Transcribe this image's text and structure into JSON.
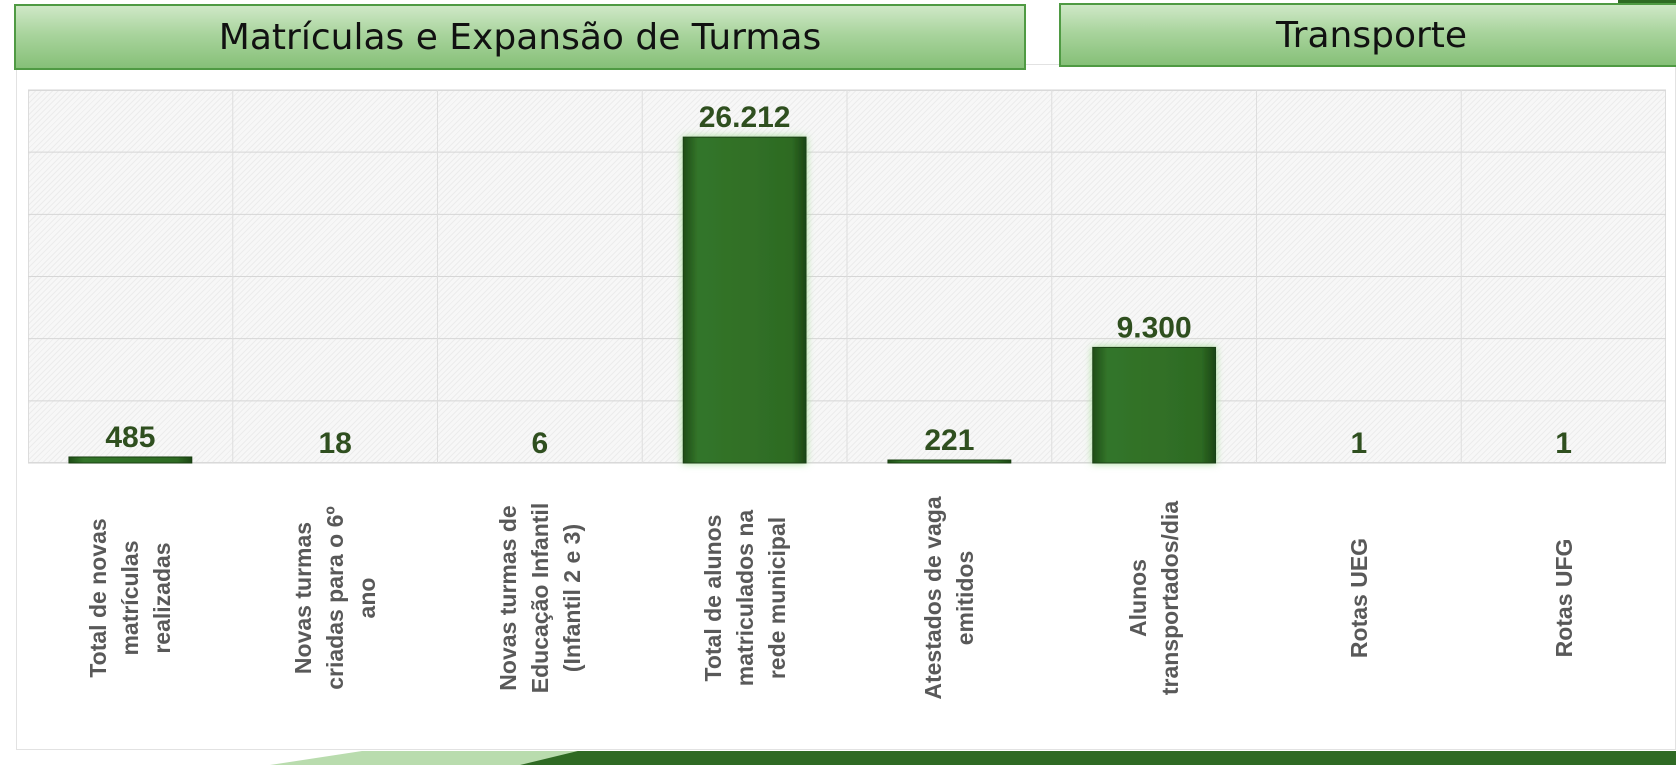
{
  "headers": {
    "left": "Matrículas e Expansão de Turmas",
    "right": "Transporte"
  },
  "colors": {
    "bar": "#2f6b22",
    "bar_glow": "#8cd07c",
    "label_text": "#2f4f1f",
    "header_border": "#4f9a43"
  },
  "chart_data": {
    "type": "bar",
    "categories": [
      "Total de novas matrículas realizadas",
      "Novas turmas criadas para o 6º ano",
      "Novas turmas de Educação Infantil (Infantil 2 e 3)",
      "Total de alunos matriculados na rede municipal",
      "Atestados de vaga emitidos",
      "Alunos transportados/dia",
      "Rotas UEG",
      "Rotas UFG"
    ],
    "category_display": [
      "Total de novas\nmatrículas\nrealizadas",
      "Novas turmas\ncriadas para o 6º\nano",
      "Novas turmas de\nEducação Infantil\n(Infantil 2 e 3)",
      "Total de alunos\nmatriculados na\nrede municipal",
      "Atestados de vaga\nemitidos",
      "Alunos\ntransportados/dia",
      "Rotas UEG",
      "Rotas UFG"
    ],
    "values": [
      485,
      18,
      6,
      26212,
      221,
      9300,
      1,
      1
    ],
    "data_labels": [
      "485",
      "18",
      "6",
      "26.212",
      "221",
      "9.300",
      "1",
      "1"
    ],
    "ylim": [
      0,
      30000
    ],
    "grid": true,
    "legend": "none"
  }
}
